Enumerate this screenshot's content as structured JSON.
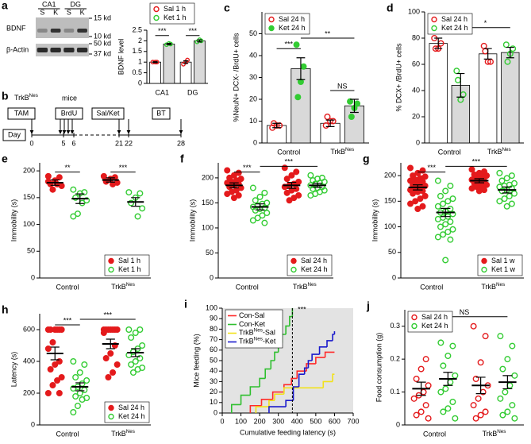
{
  "blot": {
    "label": "a",
    "regions": [
      "CA1",
      "DG"
    ],
    "lanes": [
      "S",
      "K",
      "S",
      "K"
    ],
    "rows": [
      "BDNF",
      "β-Actin"
    ],
    "markers": [
      "15 kd",
      "10 kd",
      "50 kd",
      "37 kd"
    ]
  },
  "timeline": {
    "label": "b",
    "strain": [
      "TrkB",
      "Nes"
    ],
    "mice": "mice",
    "events": [
      "TAM",
      "BrdU",
      "Sal/Ket",
      "BT"
    ],
    "axis": "Day",
    "days": [
      0,
      5,
      6,
      21,
      22,
      28
    ]
  },
  "chart_data": [
    {
      "type": "bar",
      "ylabel": "BDNF level",
      "categories": [
        "CA1",
        "DG"
      ],
      "ylim": [
        0,
        2.5
      ],
      "yticks": [
        0,
        0.5,
        1,
        1.5,
        2,
        2.5
      ],
      "legend": "top",
      "annotations": [
        "***",
        "***"
      ],
      "series": [
        {
          "name": "Sal 1 h",
          "color": "#e41a1c",
          "bar_color": "#ffffff",
          "filled": false,
          "values": [
            1.0,
            1.0
          ],
          "errors": [
            0.02,
            0.06
          ],
          "points": [
            [
              1.0,
              1.0,
              1.0
            ],
            [
              0.9,
              1.1,
              1.0
            ]
          ]
        },
        {
          "name": "Ket 1 h",
          "color": "#33cc33",
          "bar_color": "#d9d9d9",
          "filled": false,
          "values": [
            1.85,
            2.0
          ],
          "errors": [
            0.03,
            0.05
          ],
          "points": [
            [
              1.82,
              1.85,
              1.88
            ],
            [
              1.95,
              2.0,
              2.05
            ]
          ]
        }
      ]
    },
    {
      "type": "bar",
      "label": "c",
      "ylabel": "%NeuN+ DCX- /BrdU+ cells",
      "categories": [
        "Control",
        [
          "TrkB",
          "Nes"
        ]
      ],
      "ylim": [
        0,
        60
      ],
      "yticks": [
        0,
        10,
        20,
        30,
        40,
        50
      ],
      "legend": "top-left",
      "annotations": [
        "***",
        "**",
        "NS"
      ],
      "series": [
        {
          "name": "Sal 24 h",
          "color": "#e41a1c",
          "bar_color": "#ffffff",
          "filled": false,
          "values": [
            8,
            9
          ],
          "errors": [
            1,
            1.5
          ],
          "points": [
            [
              7,
              8,
              8,
              9
            ],
            [
              8,
              10,
              10,
              12
            ]
          ]
        },
        {
          "name": "Ket 24 h",
          "color": "#33cc33",
          "bar_color": "#d9d9d9",
          "filled": true,
          "values": [
            34,
            17
          ],
          "errors": [
            5,
            3
          ],
          "points": [
            [
              45,
              35,
              28,
              21
            ],
            [
              19,
              18,
              16,
              12
            ]
          ]
        }
      ]
    },
    {
      "type": "bar",
      "label": "d",
      "ylabel": "% DCX+ /BrdU+ cells",
      "categories": [
        "Control",
        [
          "TrkB",
          "Nes"
        ]
      ],
      "ylim": [
        0,
        100
      ],
      "yticks": [
        0,
        20,
        40,
        60,
        80,
        100
      ],
      "legend": "top-left",
      "annotations": [
        "**",
        "*"
      ],
      "series": [
        {
          "name": "Sal 24 h",
          "color": "#e41a1c",
          "bar_color": "#ffffff",
          "filled": false,
          "values": [
            76,
            68
          ],
          "errors": [
            4,
            4
          ],
          "points": [
            [
              80,
              76,
              72,
              72
            ],
            [
              74,
              62,
              62,
              70
            ]
          ]
        },
        {
          "name": "Ket 24 h",
          "color": "#33cc33",
          "bar_color": "#d9d9d9",
          "filled": false,
          "values": [
            44,
            69
          ],
          "errors": [
            9,
            4
          ],
          "points": [
            [
              55,
              37,
              33,
              48
            ],
            [
              75,
              72,
              68,
              62
            ]
          ]
        }
      ]
    },
    {
      "type": "dot",
      "label": "e",
      "ylabel": "Immobility (s)",
      "categories": [
        "Control",
        [
          "TrkB",
          "Nes"
        ]
      ],
      "ylim": [
        0,
        215
      ],
      "yticks": [
        0,
        50,
        100,
        150,
        200
      ],
      "legend": "bottom-right",
      "annotations": [
        "**",
        "***"
      ],
      "series": [
        {
          "name": "Sal 1 h",
          "color": "#e41a1c",
          "filled": true,
          "values": [
            178,
            183
          ],
          "errors": [
            5,
            4
          ],
          "points": [
            [
              190,
              188,
              182,
              175,
              172,
              175,
              165,
              180
            ],
            [
              190,
              188,
              185,
              180,
              178,
              175
            ]
          ]
        },
        {
          "name": "Ket 1 h",
          "color": "#33cc33",
          "filled": false,
          "values": [
            148,
            142
          ],
          "errors": [
            9,
            8
          ],
          "points": [
            [
              165,
              160,
              158,
              150,
              145,
              140,
              120,
              115
            ],
            [
              160,
              158,
              150,
              140,
              130,
              115
            ]
          ]
        }
      ]
    },
    {
      "type": "dot",
      "label": "f",
      "ylabel": "Immobility (s)",
      "categories": [
        "Control",
        [
          "TrkB",
          "Nes"
        ]
      ],
      "ylim": [
        0,
        230
      ],
      "yticks": [
        0,
        50,
        100,
        150,
        200
      ],
      "legend": "bottom-right",
      "annotations": [
        "***",
        "***"
      ],
      "series": [
        {
          "name": "Sal 24 h",
          "color": "#e41a1c",
          "filled": true,
          "values": [
            185,
            185
          ],
          "errors": [
            5,
            6
          ],
          "points": [
            [
              215,
              210,
              205,
              200,
              198,
              195,
              192,
              190,
              188,
              185,
              182,
              180,
              175,
              172,
              168,
              165,
              160
            ],
            [
              220,
              212,
              205,
              198,
              192,
              188,
              185,
              182,
              178,
              175,
              170,
              165,
              160,
              155
            ]
          ]
        },
        {
          "name": "Ket 24 h",
          "color": "#33cc33",
          "filled": false,
          "values": [
            142,
            185
          ],
          "errors": [
            6,
            4
          ],
          "points": [
            [
              180,
              170,
              162,
              155,
              150,
              148,
              145,
              142,
              140,
              138,
              135,
              130,
              125,
              120,
              115,
              110
            ],
            [
              205,
              200,
              198,
              195,
              192,
              190,
              188,
              185,
              182,
              180,
              178,
              175,
              172,
              168,
              165
            ]
          ]
        }
      ]
    },
    {
      "type": "dot",
      "label": "g",
      "ylabel": "Immobility (s)",
      "categories": [
        "Control",
        [
          "TrkB",
          "Nes"
        ]
      ],
      "ylim": [
        0,
        225
      ],
      "yticks": [
        0,
        50,
        100,
        150,
        200
      ],
      "legend": "bottom-right",
      "annotations": [
        "***",
        "***"
      ],
      "series": [
        {
          "name": "Sal 1 w",
          "color": "#e41a1c",
          "filled": true,
          "values": [
            177,
            190
          ],
          "errors": [
            5,
            4
          ],
          "points": [
            [
              215,
              210,
              205,
              200,
              198,
              195,
              192,
              190,
              188,
              185,
              182,
              180,
              178,
              175,
              172,
              170,
              168,
              165,
              160,
              155,
              150,
              145,
              140,
              135
            ],
            [
              212,
              208,
              205,
              202,
              200,
              198,
              195,
              192,
              190,
              188,
              185,
              182,
              180,
              178,
              175,
              172,
              170
            ]
          ]
        },
        {
          "name": "Ket 1 w",
          "color": "#33cc33",
          "filled": false,
          "values": [
            128,
            172
          ],
          "errors": [
            8,
            6
          ],
          "points": [
            [
              190,
              180,
              170,
              160,
              155,
              150,
              145,
              140,
              135,
              130,
              128,
              125,
              120,
              118,
              115,
              110,
              105,
              100,
              95,
              90,
              85,
              80,
              75,
              35
            ],
            [
              205,
              200,
              195,
              190,
              185,
              182,
              180,
              178,
              175,
              172,
              170,
              165,
              160,
              155,
              150,
              145,
              140
            ]
          ]
        }
      ]
    },
    {
      "type": "dot",
      "label": "h",
      "ylabel": "Latency (s)",
      "categories": [
        "Control",
        [
          "TrkB",
          "Nes"
        ]
      ],
      "ylim": [
        0,
        700
      ],
      "yticks": [
        0,
        200,
        400,
        600
      ],
      "legend": "bottom-right",
      "annotations": [
        "***",
        "***"
      ],
      "series": [
        {
          "name": "Sal 24 h",
          "color": "#e41a1c",
          "filled": true,
          "values": [
            450,
            510
          ],
          "errors": [
            40,
            30
          ],
          "points": [
            [
              600,
              600,
              600,
              600,
              600,
              600,
              520,
              480,
              400,
              380,
              350,
              300,
              280,
              250,
              200,
              200
            ],
            [
              600,
              600,
              600,
              600,
              600,
              600,
              600,
              580,
              500,
              450,
              420,
              380,
              330,
              300
            ]
          ]
        },
        {
          "name": "Ket 24 h",
          "color": "#33cc33",
          "filled": false,
          "values": [
            240,
            455
          ],
          "errors": [
            25,
            25
          ],
          "points": [
            [
              400,
              380,
              330,
              300,
              280,
              260,
              240,
              230,
              220,
              200,
              180,
              170,
              160,
              120,
              80
            ],
            [
              600,
              600,
              580,
              550,
              500,
              480,
              460,
              440,
              420,
              400,
              380,
              360,
              350,
              330
            ]
          ]
        }
      ]
    },
    {
      "type": "step",
      "label": "i",
      "xlabel": "Cumulative feeding latency (s)",
      "ylabel": "Mice feeding (%)",
      "xlim": [
        0,
        700
      ],
      "xticks": [
        0,
        100,
        200,
        300,
        400,
        500,
        600,
        700
      ],
      "ylim": [
        0,
        100
      ],
      "yticks": [
        0,
        10,
        20,
        30,
        40,
        50,
        60,
        70,
        80,
        90,
        100
      ],
      "background": "#e3e3e3",
      "legend": "top-left",
      "annotations": [
        "***"
      ],
      "series": [
        {
          "name": "Con-Sal",
          "color": "#ff2a2a",
          "x": [
            150,
            210,
            270,
            330,
            370,
            400,
            450,
            500,
            550,
            600
          ],
          "y": [
            7,
            13,
            20,
            27,
            33,
            40,
            47,
            53,
            58,
            58
          ]
        },
        {
          "name": "Con-Ket",
          "color": "#2fbf2f",
          "x": [
            50,
            100,
            150,
            200,
            230,
            260,
            280,
            300,
            320,
            340,
            360,
            375
          ],
          "y": [
            8,
            17,
            25,
            33,
            42,
            50,
            58,
            67,
            75,
            83,
            92,
            100
          ]
        },
        {
          "name": [
            "TrkB",
            "Nes",
            "-Sal"
          ],
          "color": "#f2e21a",
          "x": [
            180,
            250,
            280,
            330,
            540,
            590,
            600
          ],
          "y": [
            6,
            12,
            18,
            24,
            30,
            37,
            37
          ]
        },
        {
          "name": [
            "TrkB",
            "Nes",
            "-Ket"
          ],
          "color": "#1a1acc",
          "x": [
            250,
            340,
            380,
            410,
            440,
            460,
            480,
            520,
            560,
            590,
            600
          ],
          "y": [
            6,
            12,
            25,
            37,
            43,
            50,
            56,
            63,
            69,
            75,
            78
          ]
        }
      ]
    },
    {
      "type": "dot",
      "label": "j",
      "ylabel": "Food consumption (g)",
      "categories": [
        "Control",
        [
          "TrkB",
          "Nes"
        ]
      ],
      "ylim": [
        0,
        0.35
      ],
      "yticks": [
        0,
        0.1,
        0.2,
        0.3
      ],
      "legend": "top-left",
      "annotations": [
        "NS"
      ],
      "series": [
        {
          "name": "Sal 24 h",
          "color": "#e41a1c",
          "filled": false,
          "values": [
            0.11,
            0.12
          ],
          "errors": [
            0.02,
            0.025
          ],
          "points": [
            [
              0.31,
              0.2,
              0.17,
              0.14,
              0.12,
              0.1,
              0.09,
              0.08,
              0.06,
              0.04,
              0.03,
              0.02
            ],
            [
              0.3,
              0.27,
              0.19,
              0.14,
              0.12,
              0.1,
              0.08,
              0.06,
              0.04,
              0.03,
              0.02
            ]
          ]
        },
        {
          "name": "Ket 24 h",
          "color": "#33cc33",
          "filled": false,
          "values": [
            0.14,
            0.13
          ],
          "errors": [
            0.02,
            0.02
          ],
          "points": [
            [
              0.25,
              0.24,
              0.21,
              0.18,
              0.15,
              0.13,
              0.11,
              0.1,
              0.07,
              0.05,
              0.04,
              0.02
            ],
            [
              0.27,
              0.24,
              0.2,
              0.17,
              0.15,
              0.12,
              0.1,
              0.08,
              0.06,
              0.04,
              0.03,
              0.02
            ]
          ]
        }
      ]
    }
  ]
}
